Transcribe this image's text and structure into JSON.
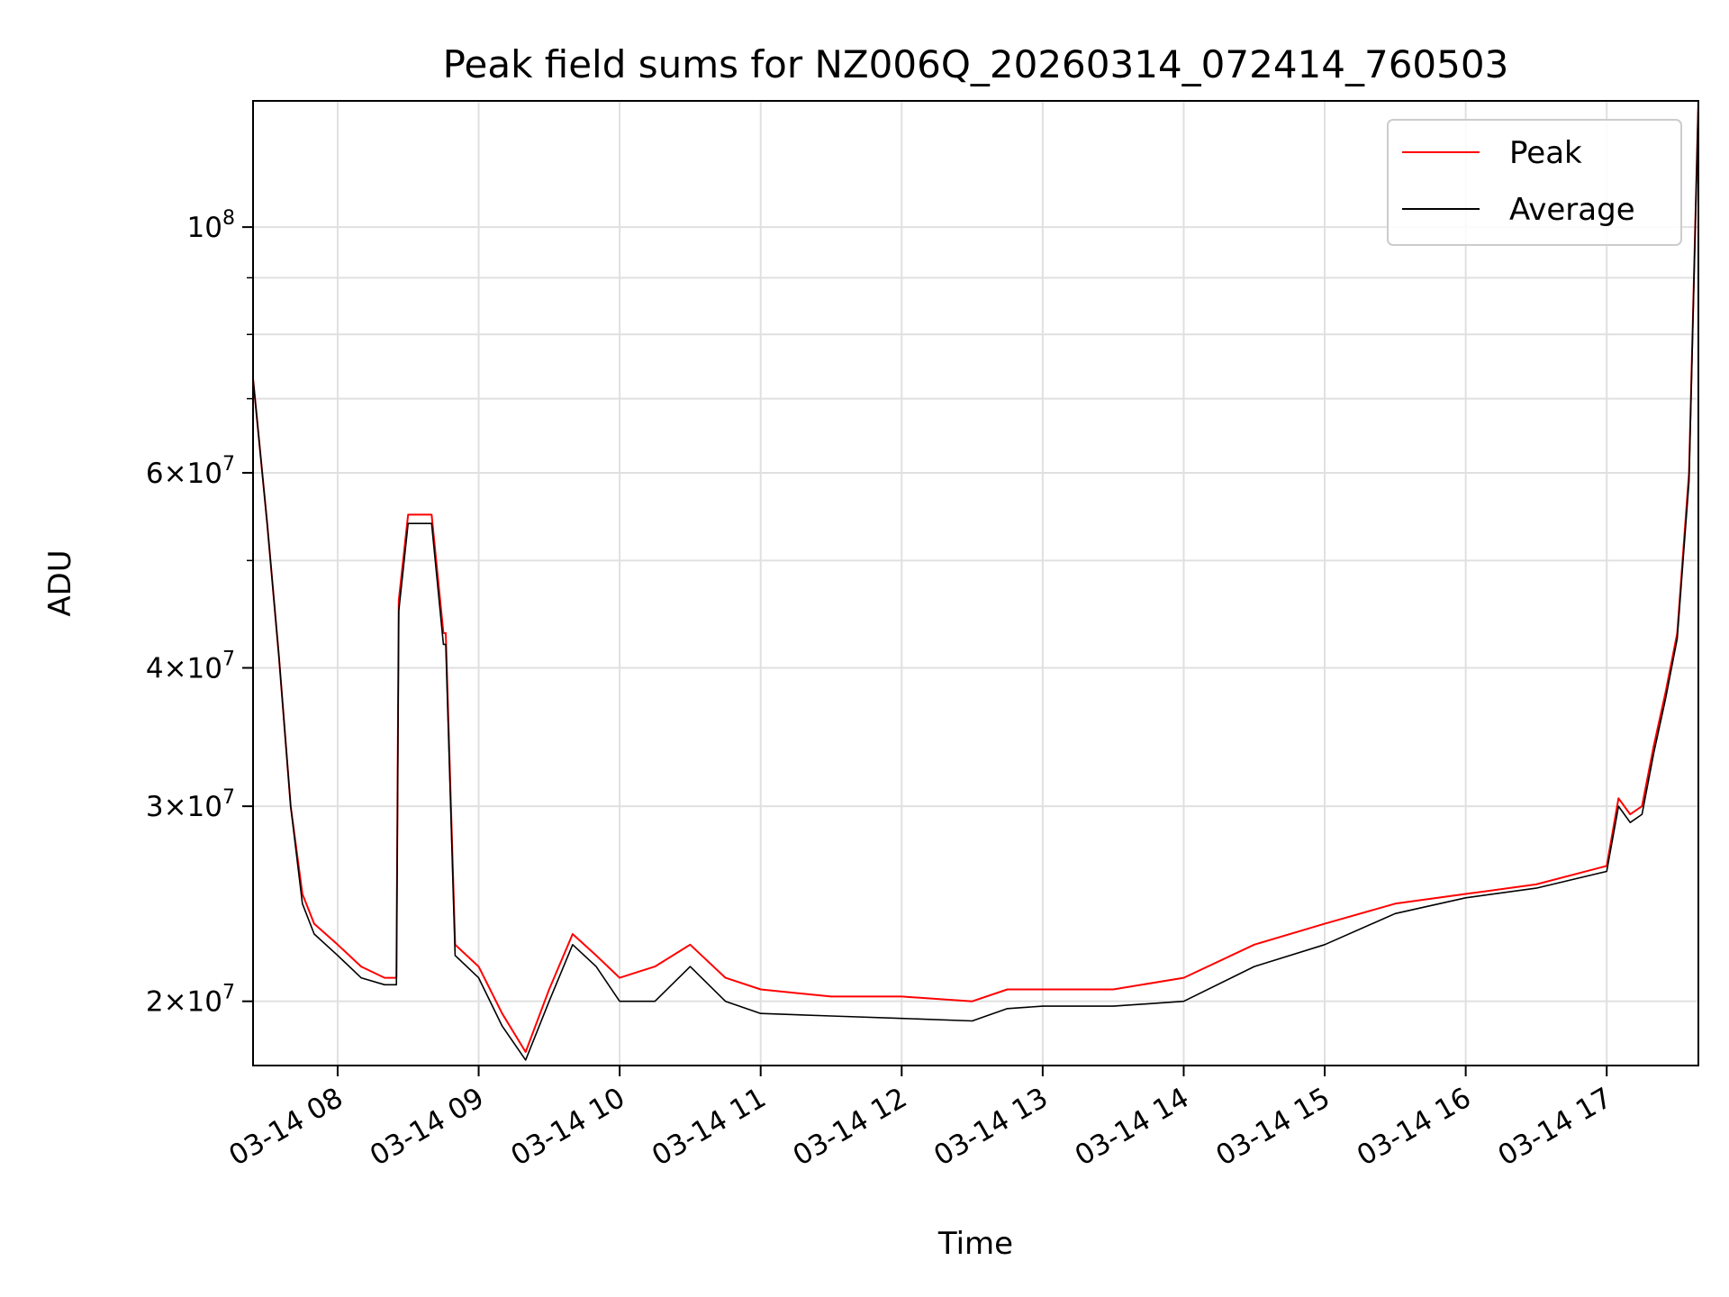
{
  "chart_data": {
    "type": "line",
    "title": "Peak field sums for NZ006Q_20260314_072414_760503",
    "xlabel": "Time",
    "ylabel": "ADU",
    "y_scale": "log",
    "grid": true,
    "legend_position": "top-right",
    "xlim": [
      "2026-03-14 07:24",
      "2026-03-14 17:39"
    ],
    "ylim": [
      17500000,
      130000000
    ],
    "x_ticks": [
      {
        "value": "2026-03-14 08:00",
        "label": "03-14 08"
      },
      {
        "value": "2026-03-14 09:00",
        "label": "03-14 09"
      },
      {
        "value": "2026-03-14 10:00",
        "label": "03-14 10"
      },
      {
        "value": "2026-03-14 11:00",
        "label": "03-14 11"
      },
      {
        "value": "2026-03-14 12:00",
        "label": "03-14 12"
      },
      {
        "value": "2026-03-14 13:00",
        "label": "03-14 13"
      },
      {
        "value": "2026-03-14 14:00",
        "label": "03-14 14"
      },
      {
        "value": "2026-03-14 15:00",
        "label": "03-14 15"
      },
      {
        "value": "2026-03-14 16:00",
        "label": "03-14 16"
      },
      {
        "value": "2026-03-14 17:00",
        "label": "03-14 17"
      }
    ],
    "y_ticks_major": [
      {
        "value": 20000000,
        "mantissa": "2",
        "exponent": "7"
      },
      {
        "value": 30000000,
        "mantissa": "3",
        "exponent": "7"
      },
      {
        "value": 40000000,
        "mantissa": "4",
        "exponent": "7"
      },
      {
        "value": 60000000,
        "mantissa": "6",
        "exponent": "7"
      },
      {
        "value": 100000000,
        "mantissa": "",
        "exponent": "8"
      }
    ],
    "y_ticks_minor": [
      50000000,
      70000000,
      80000000,
      90000000
    ],
    "series": [
      {
        "name": "Peak",
        "color": "#ff0000",
        "x": [
          "2026-03-14 07:24",
          "2026-03-14 07:30",
          "2026-03-14 07:35",
          "2026-03-14 07:40",
          "2026-03-14 07:45",
          "2026-03-14 07:50",
          "2026-03-14 08:00",
          "2026-03-14 08:10",
          "2026-03-14 08:20",
          "2026-03-14 08:25",
          "2026-03-14 08:26",
          "2026-03-14 08:30",
          "2026-03-14 08:40",
          "2026-03-14 08:45",
          "2026-03-14 08:46",
          "2026-03-14 08:50",
          "2026-03-14 09:00",
          "2026-03-14 09:10",
          "2026-03-14 09:20",
          "2026-03-14 09:30",
          "2026-03-14 09:40",
          "2026-03-14 09:50",
          "2026-03-14 10:00",
          "2026-03-14 10:15",
          "2026-03-14 10:30",
          "2026-03-14 10:45",
          "2026-03-14 11:00",
          "2026-03-14 11:30",
          "2026-03-14 12:00",
          "2026-03-14 12:30",
          "2026-03-14 12:45",
          "2026-03-14 13:00",
          "2026-03-14 13:30",
          "2026-03-14 14:00",
          "2026-03-14 14:30",
          "2026-03-14 15:00",
          "2026-03-14 15:30",
          "2026-03-14 16:00",
          "2026-03-14 16:30",
          "2026-03-14 17:00",
          "2026-03-14 17:05",
          "2026-03-14 17:10",
          "2026-03-14 17:15",
          "2026-03-14 17:20",
          "2026-03-14 17:25",
          "2026-03-14 17:30",
          "2026-03-14 17:35",
          "2026-03-14 17:39"
        ],
        "values": [
          73000000,
          54000000,
          41000000,
          30000000,
          25000000,
          23500000,
          22500000,
          21500000,
          21000000,
          21000000,
          46000000,
          55000000,
          55000000,
          43000000,
          43000000,
          22500000,
          21500000,
          19500000,
          18000000,
          20500000,
          23000000,
          22000000,
          21000000,
          21500000,
          22500000,
          21000000,
          20500000,
          20200000,
          20200000,
          20000000,
          20500000,
          20500000,
          20500000,
          21000000,
          22500000,
          23500000,
          24500000,
          25000000,
          25500000,
          26500000,
          30500000,
          29500000,
          30000000,
          34000000,
          38000000,
          43000000,
          60000000,
          130000000
        ]
      },
      {
        "name": "Average",
        "color": "#000000",
        "x": [
          "2026-03-14 07:24",
          "2026-03-14 07:30",
          "2026-03-14 07:35",
          "2026-03-14 07:40",
          "2026-03-14 07:45",
          "2026-03-14 07:50",
          "2026-03-14 08:00",
          "2026-03-14 08:10",
          "2026-03-14 08:20",
          "2026-03-14 08:25",
          "2026-03-14 08:26",
          "2026-03-14 08:30",
          "2026-03-14 08:40",
          "2026-03-14 08:45",
          "2026-03-14 08:46",
          "2026-03-14 08:50",
          "2026-03-14 09:00",
          "2026-03-14 09:10",
          "2026-03-14 09:20",
          "2026-03-14 09:30",
          "2026-03-14 09:40",
          "2026-03-14 09:50",
          "2026-03-14 10:00",
          "2026-03-14 10:15",
          "2026-03-14 10:30",
          "2026-03-14 10:45",
          "2026-03-14 11:00",
          "2026-03-14 11:30",
          "2026-03-14 12:00",
          "2026-03-14 12:30",
          "2026-03-14 12:45",
          "2026-03-14 13:00",
          "2026-03-14 13:30",
          "2026-03-14 14:00",
          "2026-03-14 14:30",
          "2026-03-14 15:00",
          "2026-03-14 15:30",
          "2026-03-14 16:00",
          "2026-03-14 16:30",
          "2026-03-14 17:00",
          "2026-03-14 17:05",
          "2026-03-14 17:10",
          "2026-03-14 17:15",
          "2026-03-14 17:20",
          "2026-03-14 17:25",
          "2026-03-14 17:30",
          "2026-03-14 17:35",
          "2026-03-14 17:39"
        ],
        "values": [
          73000000,
          54000000,
          41000000,
          30000000,
          24500000,
          23000000,
          22000000,
          21000000,
          20700000,
          20700000,
          45000000,
          54000000,
          54000000,
          42000000,
          42000000,
          22000000,
          21000000,
          19000000,
          17700000,
          20000000,
          22500000,
          21500000,
          20000000,
          20000000,
          21500000,
          20000000,
          19500000,
          19400000,
          19300000,
          19200000,
          19700000,
          19800000,
          19800000,
          20000000,
          21500000,
          22500000,
          24000000,
          24800000,
          25300000,
          26200000,
          30000000,
          29000000,
          29500000,
          33500000,
          37500000,
          42500000,
          59000000,
          130000000
        ]
      }
    ]
  }
}
